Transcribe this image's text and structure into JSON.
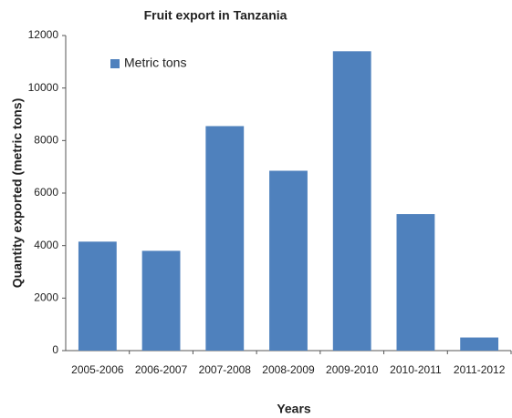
{
  "chart_data": {
    "type": "bar",
    "title": "Fruit export in Tanzania",
    "x_label": "Years",
    "y_label": "Quantity exported (metric tons)",
    "categories": [
      "2005-2006",
      "2006-2007",
      "2007-2008",
      "2008-2009",
      "2009-2010",
      "2010-2011",
      "2011-2012"
    ],
    "series": [
      {
        "name": "Metric tons",
        "color": "#4f81bd",
        "values": [
          4150,
          3800,
          8550,
          6850,
          11400,
          5200,
          500
        ]
      }
    ],
    "ylim": [
      0,
      12000
    ],
    "yticks": [
      0,
      2000,
      4000,
      6000,
      8000,
      10000,
      12000
    ],
    "grid": false,
    "legend": "top-left"
  }
}
